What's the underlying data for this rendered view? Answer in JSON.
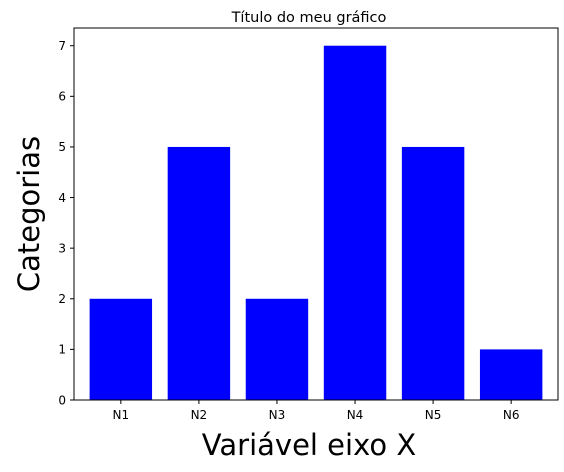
{
  "chart_data": {
    "type": "bar",
    "title": "Título do meu gráfico",
    "xlabel": "Variável eixo X",
    "ylabel": "Categorias",
    "categories": [
      "N1",
      "N2",
      "N3",
      "N4",
      "N5",
      "N6"
    ],
    "values": [
      2,
      5,
      2,
      7,
      5,
      1
    ],
    "ylim": [
      0,
      7.35
    ],
    "yticks": [
      "0",
      "1",
      "2",
      "3",
      "4",
      "5",
      "6",
      "7"
    ],
    "grid": false,
    "bar_color": "#0000ff"
  }
}
